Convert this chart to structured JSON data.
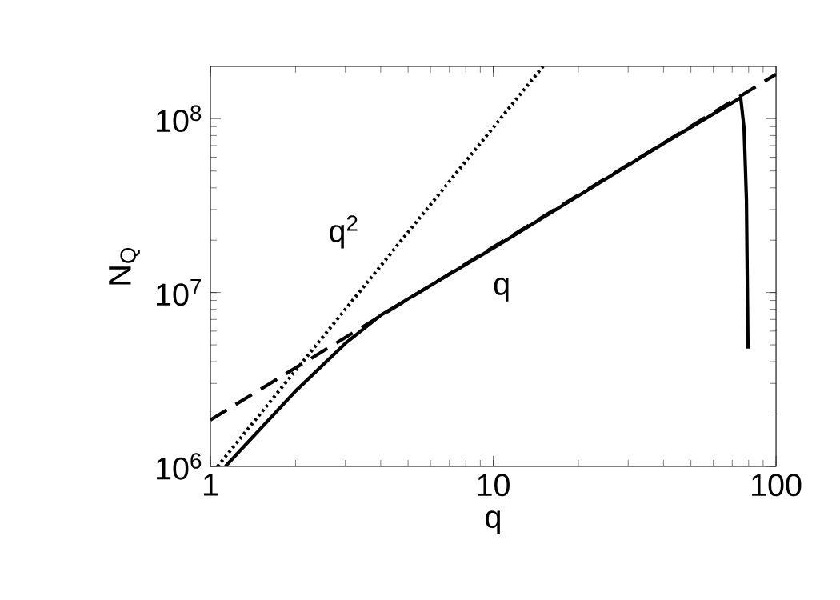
{
  "chart_data": {
    "type": "line",
    "xlabel": "q",
    "ylabel": "N$_{Q}$",
    "log": "xy",
    "grid": false,
    "marker": "none",
    "xlim": [
      1,
      100
    ],
    "ylim": [
      1000000,
      200000000
    ],
    "xticks": [
      1,
      10,
      100
    ],
    "yticks": [
      {
        "value": 1000000,
        "label": "10$^{6}$"
      },
      {
        "value": 10000000,
        "label": "10$^{7}$"
      },
      {
        "value": 100000000,
        "label": "10$^{8}$"
      }
    ],
    "series": [
      {
        "color": "#000000",
        "line_style": "solid",
        "x": [
          1.13,
          2,
          3,
          4,
          10,
          20,
          40,
          75,
          77.1,
          78.6,
          79.6
        ],
        "values": [
          1000000,
          2710000,
          5100000,
          7400000,
          18000000,
          36000000,
          72000000,
          132000000,
          88000000,
          34000000,
          4760000
        ]
      },
      {
        "color": "#000000",
        "line_style": "dashed",
        "x": [
          1,
          100
        ],
        "values": [
          1850000,
          180000000
        ]
      },
      {
        "color": "#000000",
        "line_style": "dotted",
        "x": [
          1.06,
          15
        ],
        "values": [
          1000000,
          200000000
        ]
      }
    ],
    "annotations": [
      "q$^{2}$",
      "q"
    ]
  }
}
